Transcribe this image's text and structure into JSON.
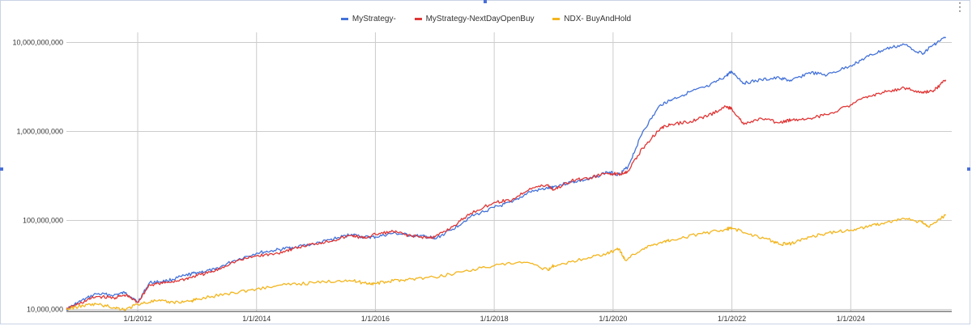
{
  "chart_data": {
    "type": "line",
    "title": "",
    "xlabel": "",
    "ylabel": "",
    "y_scale": "log",
    "ylim": [
      9500000,
      13000000000
    ],
    "xlim": [
      2010.8,
      2025.7
    ],
    "x_ticks": [
      {
        "x": 2012,
        "label": "1/1/2012"
      },
      {
        "x": 2014,
        "label": "1/1/2014"
      },
      {
        "x": 2016,
        "label": "1/1/2016"
      },
      {
        "x": 2018,
        "label": "1/1/2018"
      },
      {
        "x": 2020,
        "label": "1/1/2020"
      },
      {
        "x": 2022,
        "label": "1/1/2022"
      },
      {
        "x": 2024,
        "label": "1/1/2024"
      }
    ],
    "y_ticks": [
      {
        "y": 10000000,
        "label": "10,000,000"
      },
      {
        "y": 100000000,
        "label": "100,000,000"
      },
      {
        "y": 1000000000,
        "label": "1,000,000,000"
      },
      {
        "y": 10000000000,
        "label": "10,000,000,000"
      }
    ],
    "grid": true,
    "legend_position": "top",
    "series": [
      {
        "name": "MyStrategy-",
        "color": "#4472d9",
        "points": [
          [
            2010.8,
            10000000
          ],
          [
            2011.0,
            12000000
          ],
          [
            2011.3,
            15000000
          ],
          [
            2011.6,
            14500000
          ],
          [
            2011.8,
            15500000
          ],
          [
            2012.0,
            12000000
          ],
          [
            2012.2,
            20000000
          ],
          [
            2012.5,
            21000000
          ],
          [
            2012.8,
            24000000
          ],
          [
            2013.0,
            26000000
          ],
          [
            2013.3,
            28000000
          ],
          [
            2013.6,
            35000000
          ],
          [
            2014.0,
            43000000
          ],
          [
            2014.3,
            46000000
          ],
          [
            2014.6,
            50000000
          ],
          [
            2015.0,
            55000000
          ],
          [
            2015.3,
            62000000
          ],
          [
            2015.6,
            70000000
          ],
          [
            2015.8,
            65000000
          ],
          [
            2016.0,
            65000000
          ],
          [
            2016.3,
            72000000
          ],
          [
            2016.6,
            68000000
          ],
          [
            2016.9,
            65000000
          ],
          [
            2017.0,
            62000000
          ],
          [
            2017.3,
            80000000
          ],
          [
            2017.6,
            110000000
          ],
          [
            2018.0,
            140000000
          ],
          [
            2018.3,
            160000000
          ],
          [
            2018.6,
            210000000
          ],
          [
            2018.9,
            230000000
          ],
          [
            2019.0,
            240000000
          ],
          [
            2019.3,
            270000000
          ],
          [
            2019.6,
            290000000
          ],
          [
            2019.9,
            350000000
          ],
          [
            2020.1,
            330000000
          ],
          [
            2020.25,
            400000000
          ],
          [
            2020.5,
            1000000000
          ],
          [
            2020.8,
            2000000000
          ],
          [
            2021.0,
            2300000000
          ],
          [
            2021.3,
            2800000000
          ],
          [
            2021.6,
            3200000000
          ],
          [
            2021.9,
            4200000000
          ],
          [
            2022.0,
            4700000000
          ],
          [
            2022.2,
            3500000000
          ],
          [
            2022.5,
            3800000000
          ],
          [
            2022.8,
            4000000000
          ],
          [
            2023.0,
            3700000000
          ],
          [
            2023.3,
            4600000000
          ],
          [
            2023.6,
            4300000000
          ],
          [
            2024.0,
            5500000000
          ],
          [
            2024.3,
            7000000000
          ],
          [
            2024.6,
            8500000000
          ],
          [
            2024.9,
            9500000000
          ],
          [
            2025.2,
            7500000000
          ],
          [
            2025.4,
            9500000000
          ],
          [
            2025.6,
            11500000000
          ]
        ]
      },
      {
        "name": "MyStrategy-NextDayOpenBuy",
        "color": "#e03535",
        "points": [
          [
            2010.8,
            10000000
          ],
          [
            2011.0,
            11500000
          ],
          [
            2011.3,
            14000000
          ],
          [
            2011.6,
            13500000
          ],
          [
            2011.8,
            14500000
          ],
          [
            2012.0,
            12000000
          ],
          [
            2012.2,
            19000000
          ],
          [
            2012.5,
            20000000
          ],
          [
            2012.8,
            22000000
          ],
          [
            2013.0,
            24000000
          ],
          [
            2013.3,
            27000000
          ],
          [
            2013.6,
            34000000
          ],
          [
            2014.0,
            40000000
          ],
          [
            2014.3,
            42000000
          ],
          [
            2014.6,
            48000000
          ],
          [
            2015.0,
            55000000
          ],
          [
            2015.3,
            60000000
          ],
          [
            2015.6,
            68000000
          ],
          [
            2015.8,
            63000000
          ],
          [
            2016.0,
            70000000
          ],
          [
            2016.3,
            75000000
          ],
          [
            2016.6,
            67000000
          ],
          [
            2016.9,
            64000000
          ],
          [
            2017.0,
            65000000
          ],
          [
            2017.3,
            85000000
          ],
          [
            2017.6,
            120000000
          ],
          [
            2018.0,
            160000000
          ],
          [
            2018.3,
            170000000
          ],
          [
            2018.6,
            230000000
          ],
          [
            2018.9,
            250000000
          ],
          [
            2019.0,
            220000000
          ],
          [
            2019.3,
            280000000
          ],
          [
            2019.6,
            300000000
          ],
          [
            2019.9,
            340000000
          ],
          [
            2020.1,
            330000000
          ],
          [
            2020.25,
            360000000
          ],
          [
            2020.5,
            650000000
          ],
          [
            2020.8,
            1100000000
          ],
          [
            2021.0,
            1200000000
          ],
          [
            2021.3,
            1300000000
          ],
          [
            2021.6,
            1500000000
          ],
          [
            2021.9,
            1900000000
          ],
          [
            2022.0,
            1800000000
          ],
          [
            2022.2,
            1200000000
          ],
          [
            2022.5,
            1400000000
          ],
          [
            2022.8,
            1250000000
          ],
          [
            2023.0,
            1350000000
          ],
          [
            2023.3,
            1400000000
          ],
          [
            2023.6,
            1550000000
          ],
          [
            2024.0,
            2000000000
          ],
          [
            2024.3,
            2500000000
          ],
          [
            2024.6,
            2800000000
          ],
          [
            2024.9,
            3100000000
          ],
          [
            2025.2,
            2700000000
          ],
          [
            2025.4,
            2900000000
          ],
          [
            2025.6,
            3800000000
          ]
        ]
      },
      {
        "name": "NDX- BuyAndHold",
        "color": "#f3b51d",
        "points": [
          [
            2010.8,
            10000000
          ],
          [
            2011.0,
            10800000
          ],
          [
            2011.3,
            11500000
          ],
          [
            2011.6,
            10500000
          ],
          [
            2011.8,
            10000000
          ],
          [
            2012.0,
            11500000
          ],
          [
            2012.3,
            12500000
          ],
          [
            2012.6,
            12000000
          ],
          [
            2012.9,
            12500000
          ],
          [
            2013.0,
            13000000
          ],
          [
            2013.5,
            15000000
          ],
          [
            2014.0,
            17000000
          ],
          [
            2014.5,
            19000000
          ],
          [
            2015.0,
            20000000
          ],
          [
            2015.5,
            21500000
          ],
          [
            2015.8,
            20000000
          ],
          [
            2016.0,
            19500000
          ],
          [
            2016.3,
            21000000
          ],
          [
            2016.6,
            22000000
          ],
          [
            2017.0,
            23000000
          ],
          [
            2017.5,
            27000000
          ],
          [
            2018.0,
            31000000
          ],
          [
            2018.5,
            34000000
          ],
          [
            2018.9,
            28000000
          ],
          [
            2019.0,
            31000000
          ],
          [
            2019.5,
            37000000
          ],
          [
            2019.9,
            43000000
          ],
          [
            2020.1,
            48000000
          ],
          [
            2020.2,
            36000000
          ],
          [
            2020.5,
            48000000
          ],
          [
            2020.8,
            57000000
          ],
          [
            2021.0,
            61000000
          ],
          [
            2021.5,
            71000000
          ],
          [
            2021.9,
            80000000
          ],
          [
            2022.0,
            82000000
          ],
          [
            2022.3,
            70000000
          ],
          [
            2022.6,
            62000000
          ],
          [
            2022.8,
            54000000
          ],
          [
            2023.0,
            55000000
          ],
          [
            2023.3,
            65000000
          ],
          [
            2023.6,
            72000000
          ],
          [
            2024.0,
            78000000
          ],
          [
            2024.3,
            86000000
          ],
          [
            2024.6,
            95000000
          ],
          [
            2024.9,
            105000000
          ],
          [
            2025.2,
            95000000
          ],
          [
            2025.3,
            85000000
          ],
          [
            2025.6,
            115000000
          ]
        ]
      }
    ]
  }
}
